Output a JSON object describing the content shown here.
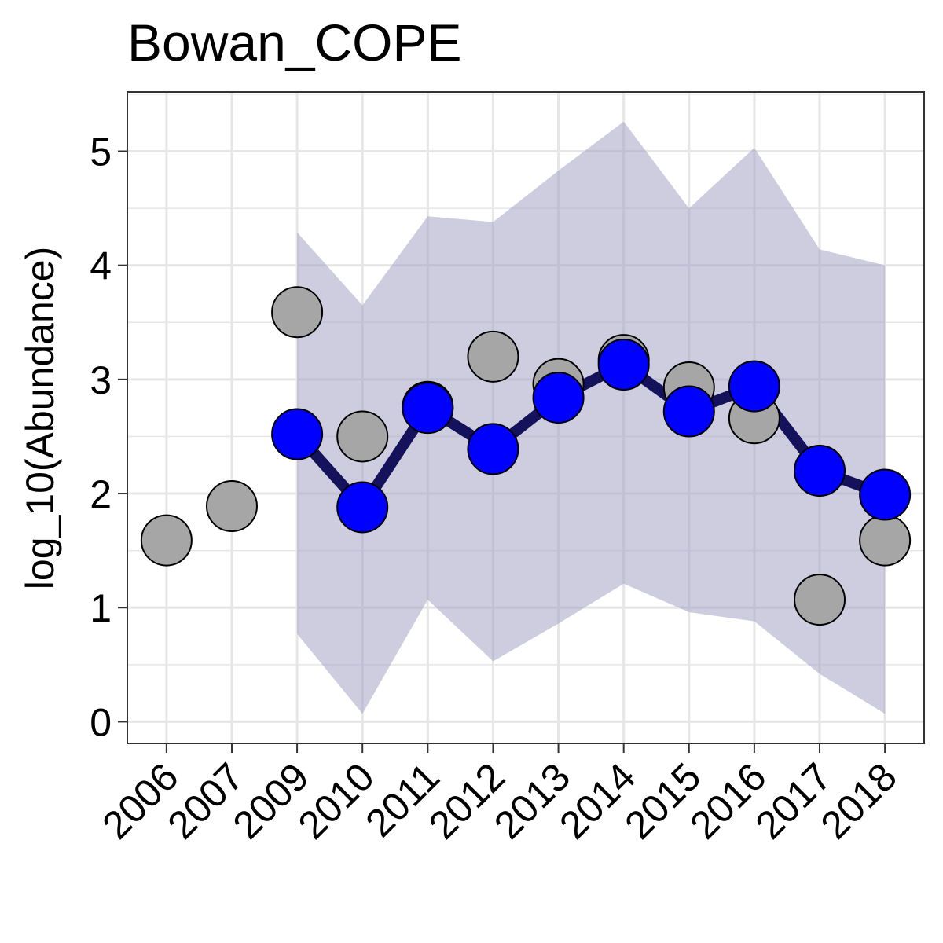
{
  "chart_data": {
    "type": "line",
    "title": "Bowan_COPE",
    "xlabel": "",
    "ylabel": "log_10(Abundance)",
    "categories": [
      "2006",
      "2007",
      "2009",
      "2010",
      "2011",
      "2012",
      "2013",
      "2014",
      "2015",
      "2016",
      "2017",
      "2018"
    ],
    "ylim": [
      -0.19,
      5.52
    ],
    "yticks": [
      0,
      1,
      2,
      3,
      4,
      5
    ],
    "grid": true,
    "legend": "none",
    "observed": {
      "x": [
        "2006",
        "2007",
        "2009",
        "2010",
        "2011",
        "2012",
        "2013",
        "2014",
        "2015",
        "2016",
        "2017",
        "2018"
      ],
      "y": [
        1.59,
        1.89,
        3.59,
        2.5,
        2.76,
        3.2,
        2.96,
        3.17,
        2.93,
        2.66,
        1.07,
        1.59
      ]
    },
    "estimate": {
      "x": [
        "2009",
        "2010",
        "2011",
        "2012",
        "2013",
        "2014",
        "2015",
        "2016",
        "2017",
        "2018"
      ],
      "y": [
        2.52,
        1.88,
        2.75,
        2.39,
        2.84,
        3.13,
        2.72,
        2.94,
        2.2,
        1.99
      ]
    },
    "interval": {
      "x": [
        "2009",
        "2010",
        "2011",
        "2012",
        "2013",
        "2014",
        "2015",
        "2016",
        "2017",
        "2018"
      ],
      "lower": [
        0.77,
        0.07,
        1.07,
        0.53,
        0.86,
        1.21,
        0.96,
        0.88,
        0.42,
        0.07
      ],
      "upper": [
        4.29,
        3.65,
        4.43,
        4.38,
        4.83,
        5.26,
        4.5,
        5.03,
        4.14,
        4.0
      ]
    },
    "colors": {
      "observed_fill": "#A6A6A6",
      "estimate_fill": "#0000FF",
      "estimate_line": "#15125C",
      "interval_fill": "#9E9CC2",
      "point_stroke": "#000000",
      "grid": "#E6E6E6",
      "panel_border": "#333333"
    }
  }
}
